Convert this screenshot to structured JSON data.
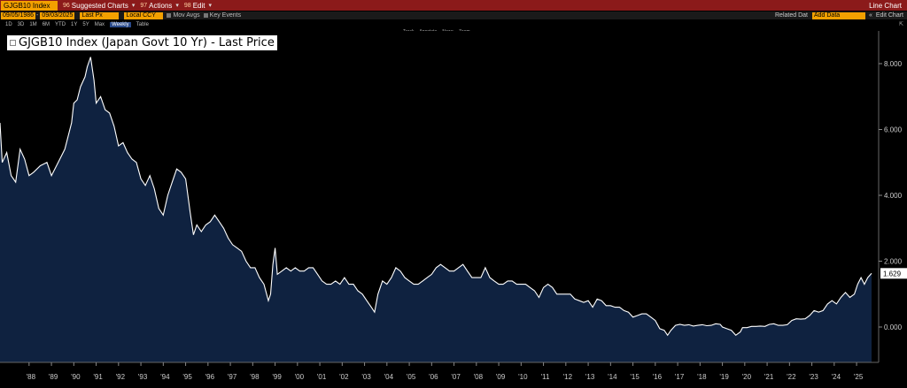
{
  "topbar": {
    "ticker": "GJGB10 Index",
    "menu": [
      {
        "num": "96",
        "label": "Suggested Charts"
      },
      {
        "num": "97",
        "label": "Actions"
      },
      {
        "num": "98",
        "label": "Edit"
      }
    ],
    "right": "Line Chart"
  },
  "controls": {
    "start_date": "09/05/1986",
    "end_date": "09/03/2025",
    "field": "Last Px",
    "currency": "Local CCY",
    "mov_avgs": "Mov Avgs",
    "key_events": "Key Events",
    "related_label": "Related Dat",
    "related_value": "Add Data",
    "edit_chart": "Edit Chart"
  },
  "ranges": [
    "1D",
    "3D",
    "1M",
    "6M",
    "YTD",
    "1Y",
    "5Y",
    "Max"
  ],
  "periodicity": "Weekly",
  "table_label": "Table",
  "tools": [
    "Track",
    "Annotate",
    "News",
    "Zoom"
  ],
  "legend": "GJGB10 Index (Japan Govt 10 Yr) - Last Price",
  "chart_data": {
    "type": "area",
    "title": "GJGB10 Index (Japan Govt 10 Yr) - Last Price",
    "x_ticks": [
      "'88",
      "'89",
      "'90",
      "'91",
      "'92",
      "'93",
      "'94",
      "'95",
      "'96",
      "'97",
      "'98",
      "'99",
      "'00",
      "'01",
      "'02",
      "'03",
      "'04",
      "'05",
      "'06",
      "'07",
      "'08",
      "'09",
      "'10",
      "'11",
      "'12",
      "'13",
      "'14",
      "'15",
      "'16",
      "'17",
      "'18",
      "'19",
      "'20",
      "'21",
      "'22",
      "'23",
      "'24",
      "'25"
    ],
    "y_ticks": [
      "8.000",
      "6.000",
      "4.000",
      "2.000",
      "0.000"
    ],
    "ylim": [
      -1.0,
      8.6
    ],
    "last_value": "1.629",
    "series": [
      {
        "points": [
          [
            1986.7,
            6.2
          ],
          [
            1986.8,
            5.0
          ],
          [
            1987.0,
            5.3
          ],
          [
            1987.2,
            4.6
          ],
          [
            1987.4,
            4.4
          ],
          [
            1987.6,
            5.4
          ],
          [
            1987.8,
            5.1
          ],
          [
            1988.0,
            4.6
          ],
          [
            1988.2,
            4.7
          ],
          [
            1988.5,
            4.9
          ],
          [
            1988.8,
            5.0
          ],
          [
            1989.0,
            4.6
          ],
          [
            1989.3,
            5.0
          ],
          [
            1989.6,
            5.4
          ],
          [
            1989.9,
            6.2
          ],
          [
            1990.0,
            6.8
          ],
          [
            1990.15,
            6.9
          ],
          [
            1990.3,
            7.3
          ],
          [
            1990.5,
            7.6
          ],
          [
            1990.6,
            7.9
          ],
          [
            1990.75,
            8.2
          ],
          [
            1990.9,
            7.5
          ],
          [
            1991.0,
            6.8
          ],
          [
            1991.2,
            7.0
          ],
          [
            1991.4,
            6.6
          ],
          [
            1991.6,
            6.5
          ],
          [
            1991.8,
            6.1
          ],
          [
            1992.0,
            5.5
          ],
          [
            1992.2,
            5.6
          ],
          [
            1992.4,
            5.3
          ],
          [
            1992.6,
            5.1
          ],
          [
            1992.8,
            5.0
          ],
          [
            1993.0,
            4.5
          ],
          [
            1993.2,
            4.3
          ],
          [
            1993.4,
            4.6
          ],
          [
            1993.6,
            4.2
          ],
          [
            1993.8,
            3.6
          ],
          [
            1994.0,
            3.4
          ],
          [
            1994.2,
            4.0
          ],
          [
            1994.4,
            4.4
          ],
          [
            1994.6,
            4.8
          ],
          [
            1994.8,
            4.7
          ],
          [
            1995.0,
            4.5
          ],
          [
            1995.2,
            3.5
          ],
          [
            1995.35,
            2.8
          ],
          [
            1995.5,
            3.1
          ],
          [
            1995.7,
            2.9
          ],
          [
            1995.9,
            3.1
          ],
          [
            1996.1,
            3.2
          ],
          [
            1996.3,
            3.4
          ],
          [
            1996.5,
            3.2
          ],
          [
            1996.7,
            3.0
          ],
          [
            1996.9,
            2.7
          ],
          [
            1997.1,
            2.5
          ],
          [
            1997.3,
            2.4
          ],
          [
            1997.5,
            2.3
          ],
          [
            1997.7,
            2.0
          ],
          [
            1997.9,
            1.8
          ],
          [
            1998.1,
            1.8
          ],
          [
            1998.3,
            1.5
          ],
          [
            1998.5,
            1.3
          ],
          [
            1998.7,
            0.8
          ],
          [
            1998.8,
            1.0
          ],
          [
            1998.9,
            1.9
          ],
          [
            1999.0,
            2.4
          ],
          [
            1999.1,
            1.6
          ],
          [
            1999.3,
            1.7
          ],
          [
            1999.5,
            1.8
          ],
          [
            1999.7,
            1.7
          ],
          [
            1999.9,
            1.8
          ],
          [
            2000.1,
            1.7
          ],
          [
            2000.3,
            1.7
          ],
          [
            2000.5,
            1.8
          ],
          [
            2000.7,
            1.8
          ],
          [
            2000.9,
            1.6
          ],
          [
            2001.1,
            1.4
          ],
          [
            2001.3,
            1.3
          ],
          [
            2001.5,
            1.3
          ],
          [
            2001.7,
            1.4
          ],
          [
            2001.9,
            1.3
          ],
          [
            2002.1,
            1.5
          ],
          [
            2002.3,
            1.3
          ],
          [
            2002.5,
            1.3
          ],
          [
            2002.7,
            1.1
          ],
          [
            2002.9,
            1.0
          ],
          [
            2003.1,
            0.8
          ],
          [
            2003.3,
            0.6
          ],
          [
            2003.45,
            0.45
          ],
          [
            2003.6,
            1.0
          ],
          [
            2003.8,
            1.4
          ],
          [
            2004.0,
            1.3
          ],
          [
            2004.2,
            1.5
          ],
          [
            2004.4,
            1.8
          ],
          [
            2004.6,
            1.7
          ],
          [
            2004.8,
            1.5
          ],
          [
            2005.0,
            1.4
          ],
          [
            2005.2,
            1.3
          ],
          [
            2005.4,
            1.3
          ],
          [
            2005.6,
            1.4
          ],
          [
            2005.8,
            1.5
          ],
          [
            2006.0,
            1.6
          ],
          [
            2006.2,
            1.8
          ],
          [
            2006.4,
            1.9
          ],
          [
            2006.6,
            1.8
          ],
          [
            2006.8,
            1.7
          ],
          [
            2007.0,
            1.7
          ],
          [
            2007.2,
            1.8
          ],
          [
            2007.4,
            1.9
          ],
          [
            2007.6,
            1.7
          ],
          [
            2007.8,
            1.5
          ],
          [
            2008.0,
            1.5
          ],
          [
            2008.2,
            1.5
          ],
          [
            2008.4,
            1.8
          ],
          [
            2008.6,
            1.5
          ],
          [
            2008.8,
            1.4
          ],
          [
            2009.0,
            1.3
          ],
          [
            2009.2,
            1.3
          ],
          [
            2009.4,
            1.4
          ],
          [
            2009.6,
            1.4
          ],
          [
            2009.8,
            1.3
          ],
          [
            2010.0,
            1.3
          ],
          [
            2010.2,
            1.3
          ],
          [
            2010.4,
            1.2
          ],
          [
            2010.6,
            1.1
          ],
          [
            2010.8,
            0.9
          ],
          [
            2011.0,
            1.2
          ],
          [
            2011.2,
            1.3
          ],
          [
            2011.4,
            1.2
          ],
          [
            2011.6,
            1.0
          ],
          [
            2011.8,
            1.0
          ],
          [
            2012.0,
            1.0
          ],
          [
            2012.2,
            1.0
          ],
          [
            2012.4,
            0.85
          ],
          [
            2012.6,
            0.8
          ],
          [
            2012.8,
            0.75
          ],
          [
            2013.0,
            0.8
          ],
          [
            2013.2,
            0.6
          ],
          [
            2013.4,
            0.85
          ],
          [
            2013.6,
            0.8
          ],
          [
            2013.8,
            0.65
          ],
          [
            2014.0,
            0.65
          ],
          [
            2014.2,
            0.6
          ],
          [
            2014.4,
            0.6
          ],
          [
            2014.6,
            0.5
          ],
          [
            2014.8,
            0.45
          ],
          [
            2015.0,
            0.3
          ],
          [
            2015.2,
            0.35
          ],
          [
            2015.4,
            0.4
          ],
          [
            2015.6,
            0.4
          ],
          [
            2015.8,
            0.3
          ],
          [
            2016.0,
            0.2
          ],
          [
            2016.2,
            -0.05
          ],
          [
            2016.4,
            -0.1
          ],
          [
            2016.55,
            -0.25
          ],
          [
            2016.7,
            -0.1
          ],
          [
            2016.9,
            0.05
          ],
          [
            2017.1,
            0.08
          ],
          [
            2017.3,
            0.05
          ],
          [
            2017.5,
            0.07
          ],
          [
            2017.7,
            0.03
          ],
          [
            2017.9,
            0.05
          ],
          [
            2018.1,
            0.07
          ],
          [
            2018.3,
            0.04
          ],
          [
            2018.5,
            0.05
          ],
          [
            2018.7,
            0.1
          ],
          [
            2018.9,
            0.08
          ],
          [
            2019.0,
            0.0
          ],
          [
            2019.2,
            -0.05
          ],
          [
            2019.4,
            -0.1
          ],
          [
            2019.6,
            -0.25
          ],
          [
            2019.8,
            -0.15
          ],
          [
            2019.9,
            -0.02
          ],
          [
            2020.1,
            -0.02
          ],
          [
            2020.3,
            0.02
          ],
          [
            2020.5,
            0.02
          ],
          [
            2020.7,
            0.03
          ],
          [
            2020.9,
            0.02
          ],
          [
            2021.1,
            0.08
          ],
          [
            2021.3,
            0.1
          ],
          [
            2021.5,
            0.05
          ],
          [
            2021.7,
            0.05
          ],
          [
            2021.9,
            0.07
          ],
          [
            2022.1,
            0.2
          ],
          [
            2022.3,
            0.25
          ],
          [
            2022.5,
            0.24
          ],
          [
            2022.7,
            0.25
          ],
          [
            2022.9,
            0.35
          ],
          [
            2023.1,
            0.5
          ],
          [
            2023.3,
            0.45
          ],
          [
            2023.5,
            0.5
          ],
          [
            2023.7,
            0.7
          ],
          [
            2023.9,
            0.8
          ],
          [
            2024.1,
            0.7
          ],
          [
            2024.3,
            0.9
          ],
          [
            2024.5,
            1.05
          ],
          [
            2024.7,
            0.9
          ],
          [
            2024.9,
            1.0
          ],
          [
            2025.05,
            1.3
          ],
          [
            2025.2,
            1.5
          ],
          [
            2025.35,
            1.3
          ],
          [
            2025.5,
            1.5
          ],
          [
            2025.67,
            1.629
          ]
        ]
      }
    ]
  }
}
